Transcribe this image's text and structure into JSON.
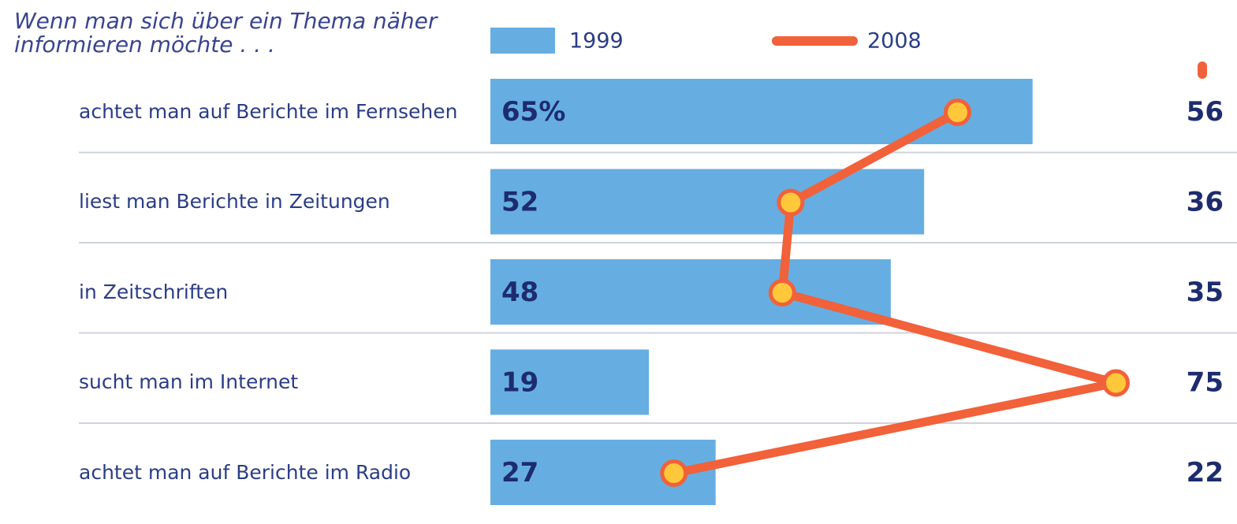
{
  "chart_data": {
    "type": "bar",
    "title": "Wenn man sich über ein Thema näher informieren möchte . . .",
    "categories": [
      "achtet man auf Berichte im Fernsehen",
      "liest man Berichte in Zeitungen",
      "in Zeitschriften",
      "sucht man im Internet",
      "achtet man auf Berichte im Radio"
    ],
    "series": [
      {
        "name": "1999",
        "color": "#66aee2",
        "values": [
          65,
          52,
          48,
          19,
          27
        ],
        "value_labels": [
          "65%",
          "52",
          "48",
          "19",
          "27"
        ]
      },
      {
        "name": "2008",
        "type": "line",
        "color": "#f1613a",
        "values": [
          56,
          36,
          35,
          75,
          22
        ]
      }
    ]
  }
}
